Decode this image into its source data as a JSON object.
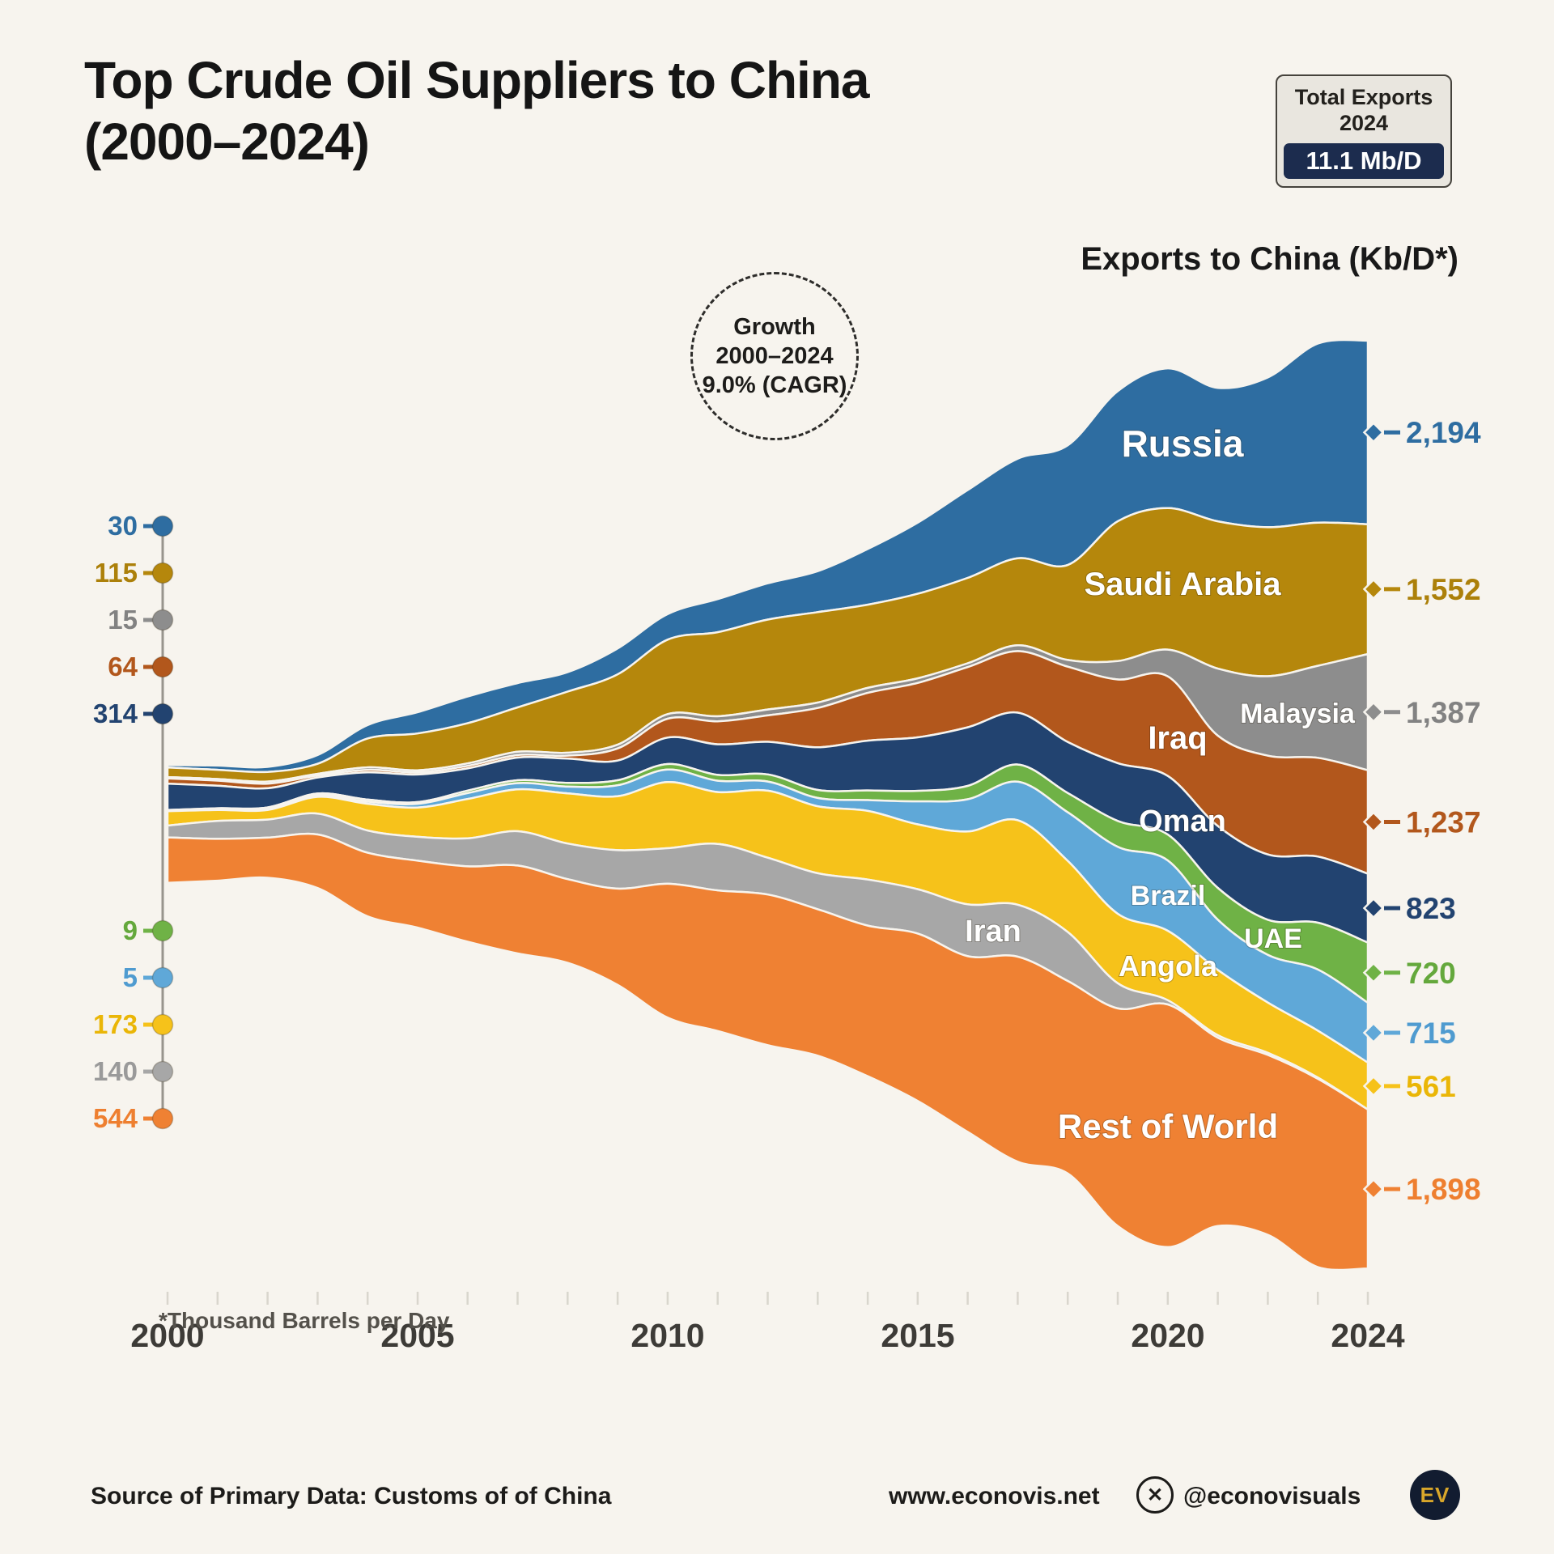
{
  "title": {
    "line1": "Top Crude Oil Suppliers to China",
    "line2": "(2000–2024)"
  },
  "total_badge": {
    "line1": "Total Exports",
    "line2": "2024",
    "value": "11.1 Mb/D"
  },
  "axis_title": "Exports to China (Kb/D*)",
  "growth_note": {
    "line1": "Growth",
    "line2": "2000–2024",
    "line3": "9.0% (CAGR)"
  },
  "footnote": "*Thousand Barrels per Day",
  "footer": {
    "source": "Source of Primary Data: Customs of of China",
    "website": "www.econovis.net",
    "x_handle": "@econovisuals",
    "x_icon": "✕",
    "logo_text": "EV"
  },
  "chart_data": {
    "type": "area",
    "variant": "streamgraph",
    "title": "Top Crude Oil Suppliers to China (2000-2024)",
    "ylabel": "Exports to China (Kb/D)",
    "unit": "thousand barrels per day",
    "grid": false,
    "legend_position": "labels-on-bands",
    "total_2024": "11.1 Mb/D",
    "growth_cagr_2000_2024": "9.0%",
    "x": [
      2000,
      2001,
      2002,
      2003,
      2004,
      2005,
      2006,
      2007,
      2008,
      2009,
      2010,
      2011,
      2012,
      2013,
      2014,
      2015,
      2016,
      2017,
      2018,
      2019,
      2020,
      2021,
      2022,
      2023,
      2024
    ],
    "x_tick_years": [
      2000,
      2005,
      2010,
      2015,
      2020,
      2024
    ],
    "x_tick_labels": [
      "2000",
      "2005",
      "2010",
      "2015",
      "2020",
      "2024"
    ],
    "series": [
      {
        "id": "russia",
        "name": "Russia",
        "color": "#2e6da1",
        "text_color": "#2e6da1",
        "value_2000": 30,
        "value_2024": 2194,
        "value_2000_label": "30",
        "value_2024_label": "2,194",
        "label_year": 2020.3,
        "label_size": 46,
        "values": [
          30,
          50,
          60,
          105,
          160,
          255,
          320,
          290,
          233,
          310,
          306,
          395,
          433,
          490,
          665,
          850,
          1050,
          1190,
          1430,
          1555,
          1670,
          1595,
          1790,
          2140,
          2194
        ]
      },
      {
        "id": "saudi-arabia",
        "name": "Saudi Arabia",
        "color": "#b5870c",
        "text_color": "#ac800a",
        "value_2000": 115,
        "value_2024": 1552,
        "value_2000_label": "115",
        "value_2024_label": "1,552",
        "label_year": 2020.3,
        "label_size": 40,
        "values": [
          115,
          110,
          115,
          120,
          345,
          440,
          480,
          530,
          730,
          840,
          890,
          1005,
          1075,
          1080,
          995,
          1010,
          1020,
          1040,
          1135,
          1670,
          1690,
          1760,
          1780,
          1710,
          1552
        ]
      },
      {
        "id": "malaysia",
        "name": "Malaysia",
        "color": "#8d8d8d",
        "text_color": "#828282",
        "value_2000": 15,
        "value_2024": 1387,
        "value_2000_label": "15",
        "value_2024_label": "1,387",
        "label_year": 2022.6,
        "label_size": 34,
        "values": [
          15,
          20,
          25,
          20,
          30,
          25,
          30,
          40,
          35,
          45,
          55,
          60,
          70,
          65,
          60,
          55,
          45,
          70,
          80,
          220,
          320,
          800,
          950,
          1100,
          1387
        ]
      },
      {
        "id": "iraq",
        "name": "Iraq",
        "color": "#b2571c",
        "text_color": "#b2571c",
        "value_2000": 64,
        "value_2024": 1237,
        "value_2000_label": "64",
        "value_2024_label": "1,237",
        "label_year": 2020.2,
        "label_size": 40,
        "values": [
          64,
          60,
          55,
          25,
          30,
          25,
          30,
          30,
          35,
          145,
          225,
          275,
          315,
          470,
          570,
          650,
          720,
          735,
          900,
          1000,
          1190,
          1080,
          1180,
          1180,
          1237
        ]
      },
      {
        "id": "oman",
        "name": "Oman",
        "color": "#224370",
        "text_color": "#224370",
        "value_2000": 314,
        "value_2024": 823,
        "value_2000_label": "314",
        "value_2024_label": "823",
        "label_year": 2020.3,
        "label_size": 38,
        "values": [
          314,
          270,
          230,
          190,
          325,
          330,
          265,
          270,
          290,
          235,
          317,
          365,
          390,
          510,
          595,
          640,
          700,
          620,
          610,
          690,
          700,
          740,
          780,
          790,
          823
        ]
      },
      {
        "id": "uae",
        "name": "UAE",
        "color": "#6fb246",
        "text_color": "#64a83c",
        "value_2000": 9,
        "value_2024": 720,
        "value_2000_label": "9",
        "value_2024_label": "720",
        "label_year": 2022.1,
        "label_size": 34,
        "values": [
          9,
          10,
          15,
          20,
          25,
          20,
          30,
          35,
          45,
          60,
          65,
          70,
          85,
          95,
          115,
          125,
          160,
          205,
          230,
          310,
          310,
          380,
          420,
          560,
          720
        ]
      },
      {
        "id": "brazil",
        "name": "Brazil",
        "color": "#5fa8d8",
        "text_color": "#4f9bd0",
        "value_2000": 5,
        "value_2024": 715,
        "value_2000_label": "5",
        "value_2024_label": "715",
        "label_year": 2020.0,
        "label_size": 34,
        "values": [
          5,
          10,
          15,
          20,
          25,
          45,
          70,
          75,
          80,
          130,
          150,
          135,
          110,
          100,
          130,
          275,
          385,
          460,
          580,
          800,
          840,
          600,
          570,
          730,
          715
        ]
      },
      {
        "id": "angola",
        "name": "Angola",
        "color": "#f6c21a",
        "text_color": "#eab607",
        "value_2000": 173,
        "value_2024": 561,
        "value_2000_label": "173",
        "value_2024_label": "561",
        "label_year": 2020.0,
        "label_size": 36,
        "values": [
          173,
          130,
          115,
          200,
          320,
          350,
          470,
          500,
          600,
          645,
          790,
          620,
          800,
          800,
          820,
          775,
          870,
          1010,
          850,
          830,
          830,
          780,
          600,
          560,
          561
        ]
      },
      {
        "id": "iran",
        "name": "Iran",
        "color": "#a7a7a7",
        "text_color": "#9a9a9a",
        "value_2000": 140,
        "value_2024": 0,
        "value_2000_label": "140",
        "value_2024_label": null,
        "label_year": 2016.5,
        "label_size": 38,
        "values": [
          140,
          215,
          215,
          250,
          265,
          285,
          335,
          410,
          425,
          460,
          425,
          555,
          440,
          430,
          550,
          530,
          620,
          620,
          585,
          300,
          50,
          30,
          25,
          15,
          0
        ]
      },
      {
        "id": "rest-of-world",
        "name": "Rest of World",
        "color": "#ef8133",
        "text_color": "#ee7f30",
        "value_2000": 544,
        "value_2024": 1898,
        "value_2000_label": "544",
        "value_2024_label": "1,898",
        "label_year": 2020.0,
        "label_size": 42,
        "values": [
          544,
          500,
          480,
          640,
          760,
          800,
          900,
          1050,
          1000,
          1150,
          1600,
          1680,
          1800,
          1750,
          1800,
          2000,
          2100,
          2450,
          2300,
          2600,
          2900,
          2250,
          2150,
          2250,
          1898
        ]
      }
    ]
  }
}
